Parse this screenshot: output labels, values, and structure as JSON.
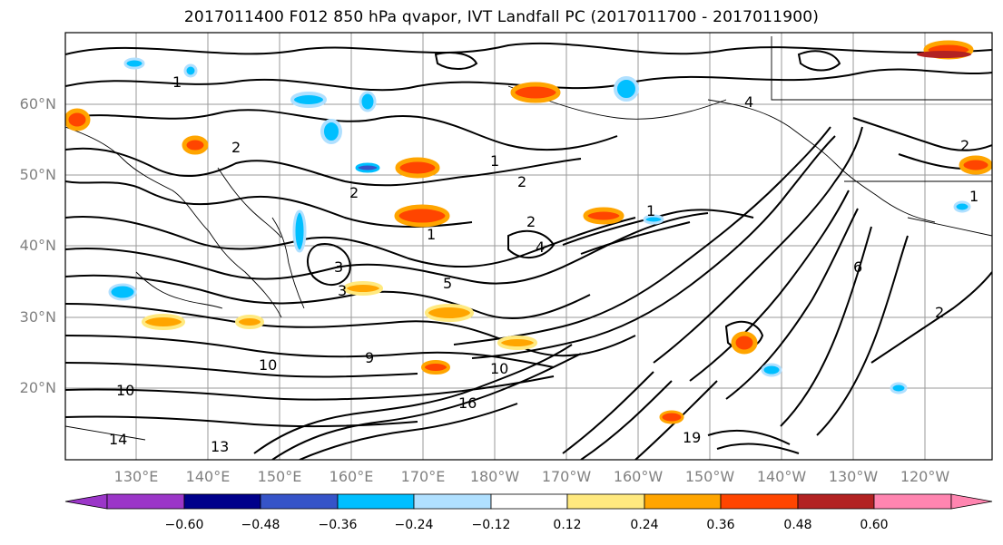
{
  "title": "2017011400 F012 850 hPa qvapor, IVT Landfall PC (2017011700 - 2017011900)",
  "map": {
    "lat_labels": [
      "60°N",
      "50°N",
      "40°N",
      "30°N",
      "20°N"
    ],
    "lon_labels": [
      "130°E",
      "140°E",
      "150°E",
      "160°E",
      "170°E",
      "180°W",
      "170°W",
      "160°W",
      "150°W",
      "140°W",
      "130°W",
      "120°W"
    ],
    "contour_labels": [
      "1",
      "2",
      "2",
      "1",
      "2",
      "1",
      "2",
      "3",
      "3",
      "5",
      "4",
      "1",
      "6",
      "10",
      "10",
      "9",
      "10",
      "13",
      "14",
      "16",
      "19",
      "4",
      "2",
      "2",
      "1"
    ]
  },
  "colorbar": {
    "ticks": [
      "−0.60",
      "−0.48",
      "−0.36",
      "−0.24",
      "−0.12",
      "0.12",
      "0.24",
      "0.36",
      "0.48",
      "0.60"
    ],
    "colors": [
      "#9b36c8",
      "#00008b",
      "#3654c8",
      "#00bfff",
      "#b0e0ff",
      "#ffffff",
      "#ffe97f",
      "#ffa500",
      "#ff4500",
      "#b22222",
      "#ff85b0"
    ]
  }
}
